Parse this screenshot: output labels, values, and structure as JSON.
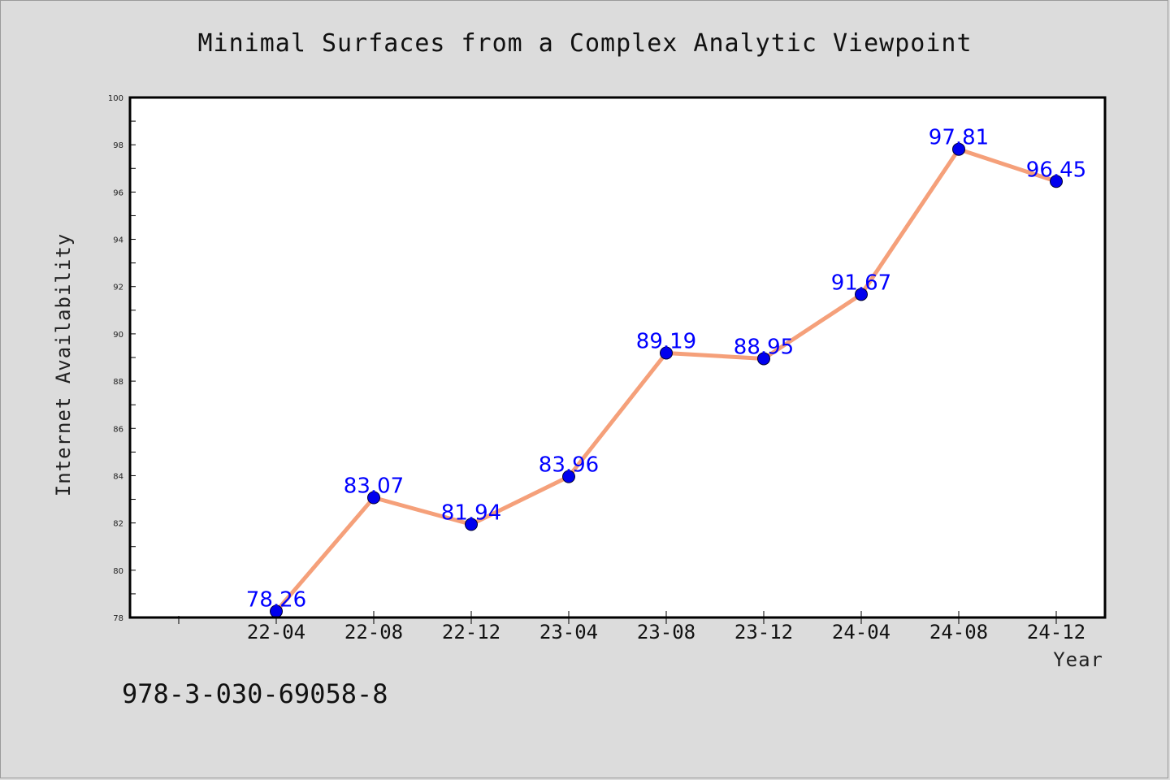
{
  "footnote": "978-3-030-69058-8",
  "colors": {
    "background": "#dcdcdc",
    "plot_area": "#ffffff",
    "line": "#f5a07a",
    "marker": "#0000ee",
    "labels": "#0000ff"
  },
  "chart_data": {
    "type": "line",
    "title": "Minimal Surfaces from a Complex Analytic Viewpoint",
    "xlabel": "Year",
    "ylabel": "Internet Availability",
    "categories": [
      "22-04",
      "22-08",
      "22-12",
      "23-04",
      "23-08",
      "23-12",
      "24-04",
      "24-08",
      "24-12"
    ],
    "series": [
      {
        "values": [
          78.26,
          83.07,
          81.94,
          83.96,
          89.19,
          88.95,
          91.67,
          97.81,
          96.45
        ]
      }
    ],
    "data_labels": [
      "78.26",
      "83.07",
      "81.94",
      "83.96",
      "89.19",
      "88.95",
      "91.67",
      "97.81",
      "96.45"
    ],
    "ylim": [
      78,
      100
    ],
    "yticks": [
      "78",
      "80",
      "82",
      "84",
      "86",
      "88",
      "90",
      "92",
      "94",
      "96",
      "98",
      "100"
    ],
    "grid": false,
    "legend": "none"
  }
}
